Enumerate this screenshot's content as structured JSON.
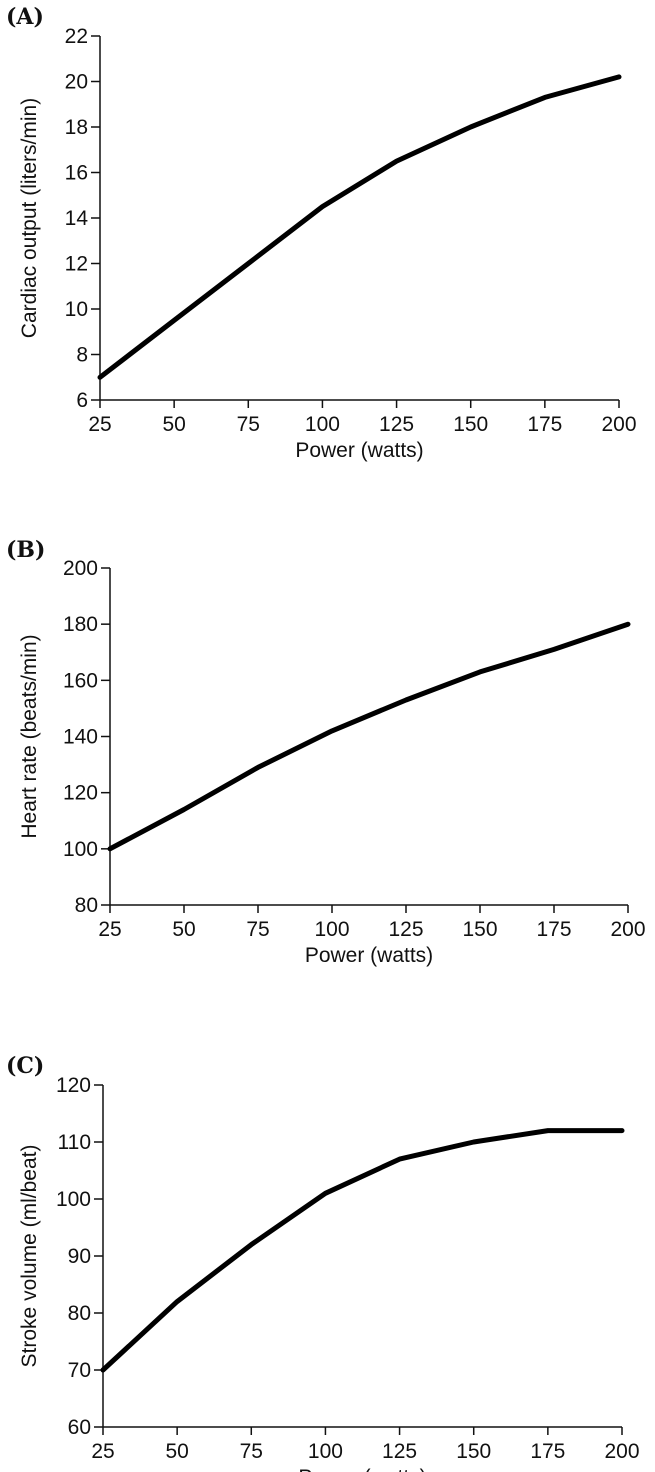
{
  "chart_data": [
    {
      "type": "line",
      "panel": "(A)",
      "xlabel": "Power (watts)",
      "ylabel": "Cardiac output (liters/min)",
      "xlim": [
        25,
        200
      ],
      "ylim": [
        6,
        22
      ],
      "xticks": [
        25,
        50,
        75,
        100,
        125,
        150,
        175,
        200
      ],
      "yticks": [
        6,
        8,
        10,
        12,
        14,
        16,
        18,
        20,
        22
      ],
      "grid": false,
      "series": [
        {
          "x": [
            25,
            50,
            75,
            100,
            125,
            150,
            175,
            200
          ],
          "y": [
            7.0,
            9.5,
            12.0,
            14.5,
            16.5,
            18.0,
            19.3,
            20.2
          ]
        }
      ]
    },
    {
      "type": "line",
      "panel": "(B)",
      "xlabel": "Power (watts)",
      "ylabel": "Heart rate (beats/min)",
      "xlim": [
        25,
        200
      ],
      "ylim": [
        80,
        200
      ],
      "xticks": [
        25,
        50,
        75,
        100,
        125,
        150,
        175,
        200
      ],
      "yticks": [
        80,
        100,
        120,
        140,
        160,
        180,
        200
      ],
      "grid": false,
      "series": [
        {
          "x": [
            25,
            50,
            75,
            100,
            125,
            150,
            175,
            200
          ],
          "y": [
            100,
            114,
            129,
            142,
            153,
            163,
            171,
            180
          ]
        }
      ]
    },
    {
      "type": "line",
      "panel": "(C)",
      "xlabel": "Power (watts)",
      "ylabel": "Stroke volume (ml/beat)",
      "xlim": [
        25,
        200
      ],
      "ylim": [
        60,
        120
      ],
      "xticks": [
        25,
        50,
        75,
        100,
        125,
        150,
        175,
        200
      ],
      "yticks": [
        60,
        70,
        80,
        90,
        100,
        110,
        120
      ],
      "grid": false,
      "series": [
        {
          "x": [
            25,
            50,
            75,
            100,
            125,
            150,
            175,
            200
          ],
          "y": [
            70,
            82,
            92,
            101,
            107,
            110,
            112,
            112
          ]
        }
      ]
    }
  ]
}
